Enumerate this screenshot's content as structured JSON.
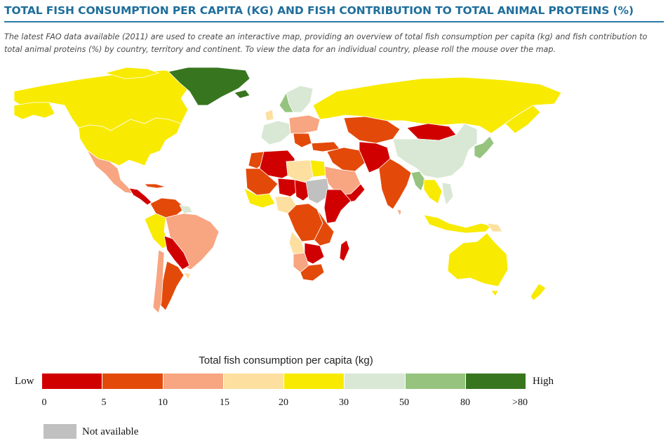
{
  "header": {
    "title": "TOTAL FISH CONSUMPTION PER CAPITA (KG) AND FISH CONTRIBUTION TO TOTAL ANIMAL PROTEINS (%)",
    "description": "The latest FAO data available (2011) are used to create an interactive map, providing an overview of total fish consumption per capita (kg) and fish contribution to total animal proteins (%) by country, territory and continent. To view the data for an individual country, please roll the mouse over the map."
  },
  "colors": {
    "c0_5": "#d10000",
    "c5_10": "#e34a0a",
    "c10_15": "#f8a582",
    "c15_20": "#fde09f",
    "c20_30": "#f8ea00",
    "c30_50": "#d8e8d4",
    "c50_80": "#96c47f",
    "c80": "#37761f",
    "na": "#c0c0c0"
  },
  "legend": {
    "title": "Total fish consumption per capita (kg)",
    "low_label": "Low",
    "high_label": "High",
    "ticks": [
      "0",
      "5",
      "10",
      "15",
      "20",
      "30",
      "50",
      "80",
      ">80"
    ],
    "not_available_label": "Not available"
  }
}
